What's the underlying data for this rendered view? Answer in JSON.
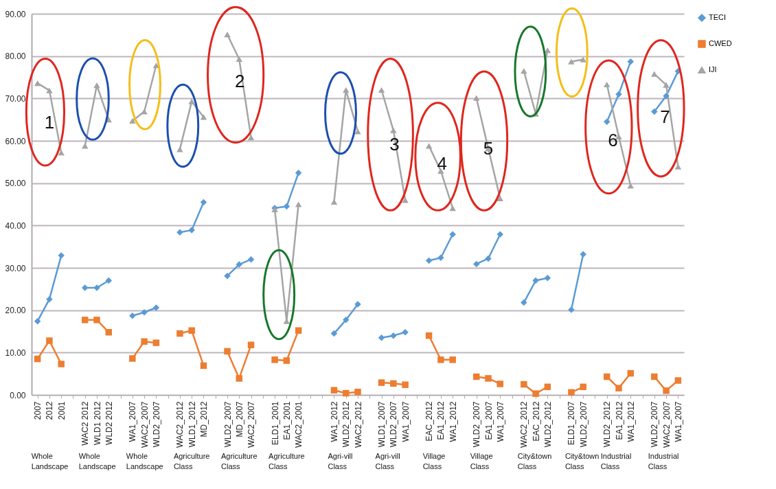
{
  "chart_data": {
    "type": "line",
    "categories": [
      "2007",
      "2012",
      "2001",
      null,
      "WAC2 2012",
      "WLD1 2012",
      "WLD2 2012",
      null,
      "WA1_2007",
      "WAC2_2007",
      "WLD2_2007",
      null,
      "WAC2_2012",
      "WLD1_2012",
      "MD_2012",
      null,
      "WLD2_2007",
      "MD_2007",
      "WAC2_2007",
      null,
      "ELD1_2001",
      "EA1_2001",
      "WAC2_2001",
      null,
      null,
      "WA1_2012",
      "WLD2_2012",
      "WAC2_2012",
      null,
      "WLD1_2007",
      "WLD2_2007",
      "WA1_2007",
      null,
      "EAC_2012",
      "EA1_2012",
      "WA1_2012",
      null,
      "WLD2_2007",
      "EA1_2007",
      "WA1_2007",
      null,
      "WAC2_2012",
      "EAC_2012",
      "WLD2_2012",
      null,
      "ELD1_2007",
      "WLD2_2007",
      null,
      "WLD2_2012",
      "EA1_2012",
      "WA1_2012",
      null,
      "WLD2_2007",
      "WAC2_2007",
      "WA1_2007"
    ],
    "series": [
      {
        "name": "TECI",
        "color": "#5b9bd5",
        "marker": "diamond",
        "values": [
          17.4,
          22.6,
          32.9,
          null,
          25.3,
          25.3,
          27.0,
          null,
          18.7,
          19.5,
          20.6,
          null,
          38.4,
          38.9,
          45.5,
          null,
          28.1,
          30.8,
          32.0,
          null,
          44.1,
          44.5,
          52.4,
          null,
          null,
          14.5,
          17.7,
          21.4,
          null,
          13.5,
          14.0,
          14.8,
          null,
          31.7,
          32.4,
          37.9,
          null,
          30.9,
          32.2,
          37.9,
          null,
          21.8,
          27.0,
          27.6,
          null,
          20.1,
          33.2,
          null,
          64.5,
          71.0,
          78.7,
          null,
          66.9,
          70.6,
          76.4
        ]
      },
      {
        "name": "CWED",
        "color": "#ed7d31",
        "marker": "square",
        "values": [
          8.5,
          12.8,
          7.3,
          null,
          17.7,
          17.7,
          14.8,
          null,
          8.6,
          12.6,
          12.3,
          null,
          14.5,
          15.2,
          6.9,
          null,
          10.3,
          3.9,
          11.8,
          null,
          8.3,
          8.1,
          15.2,
          null,
          null,
          1.1,
          0.4,
          0.7,
          null,
          2.9,
          2.7,
          2.4,
          null,
          14.0,
          8.3,
          8.3,
          null,
          4.3,
          3.9,
          2.6,
          null,
          2.5,
          0.3,
          1.9,
          null,
          0.6,
          1.9,
          null,
          4.3,
          1.6,
          5.1,
          null,
          4.3,
          1.0,
          3.4
        ]
      },
      {
        "name": "IJI",
        "color": "#a5a5a5",
        "marker": "triangle",
        "values": [
          73.6,
          71.9,
          57.2,
          null,
          58.8,
          73.1,
          65.0,
          null,
          64.7,
          66.9,
          77.8,
          null,
          58.0,
          69.3,
          65.6,
          null,
          85.1,
          79.3,
          60.8,
          null,
          43.8,
          17.4,
          45.0,
          null,
          null,
          45.6,
          72.0,
          62.2,
          null,
          72.0,
          62.5,
          46.0,
          null,
          58.8,
          52.9,
          44.1,
          null,
          70.1,
          58.2,
          46.4,
          null,
          76.5,
          66.4,
          81.4,
          null,
          78.7,
          79.2,
          null,
          73.3,
          61.0,
          49.4,
          null,
          75.8,
          73.2,
          53.9
        ]
      }
    ],
    "ylim": [
      0,
      90
    ],
    "yticks": [
      {
        "value": 0,
        "label": "0.00"
      },
      {
        "value": 10,
        "label": "10.00"
      },
      {
        "value": 20,
        "label": "20.00"
      },
      {
        "value": 30,
        "label": "30.00"
      },
      {
        "value": 40,
        "label": "40.00"
      },
      {
        "value": 50,
        "label": "50.00"
      },
      {
        "value": 60,
        "label": "60.00"
      },
      {
        "value": 70,
        "label": "70.00"
      },
      {
        "value": 80,
        "label": "80.00"
      },
      {
        "value": 90,
        "label": "90.00"
      }
    ],
    "grid": "y",
    "legend": "right",
    "annotations": [
      "Whole Landscape",
      "Whole Landscape",
      "Whole Landscape",
      "Agriculture Class",
      "Agriculture Class",
      "Agriculture Class",
      "Agri-vill Class",
      "Agri-vill Class",
      "Village Class",
      "Village Class",
      "City&town Class",
      "City&town Class",
      "Industrial Class",
      "Industrial Class",
      "1",
      "2",
      "3",
      "4",
      "5",
      "6",
      "7"
    ]
  }
}
